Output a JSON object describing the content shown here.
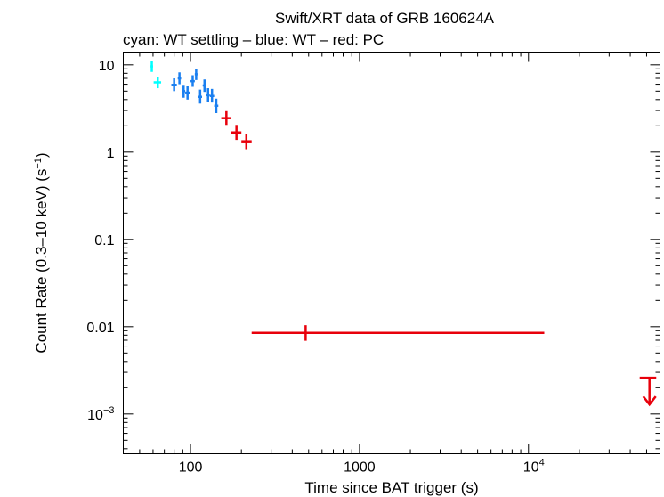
{
  "chart_data": {
    "type": "scatter",
    "title": "Swift/XRT data of GRB 160624A",
    "subtitle": "cyan: WT settling – blue: WT – red: PC",
    "xlabel": "Time since BAT trigger (s)",
    "ylabel": "Count Rate (0.3–10 keV) (s",
    "ylabel_sup": "−1",
    "ylabel_end": ")",
    "xscale": "log",
    "yscale": "log",
    "xlim": [
      40,
      60000
    ],
    "ylim": [
      0.00035,
      14
    ],
    "x_ticks": [
      {
        "value": 100,
        "label": "100"
      },
      {
        "value": 1000,
        "label": "1000"
      },
      {
        "value": 10000,
        "base": "10",
        "exp": "4"
      }
    ],
    "y_ticks": [
      {
        "value": 10,
        "label": "10"
      },
      {
        "value": 1,
        "label": "1"
      },
      {
        "value": 0.1,
        "label": "0.1"
      },
      {
        "value": 0.01,
        "label": "0.01"
      },
      {
        "value": 0.001,
        "base": "10",
        "exp": "−3"
      }
    ],
    "series": [
      {
        "color": "#00ffff",
        "points": [
          {
            "x": 59,
            "xlo": 58,
            "xhi": 60,
            "y": 9.6,
            "ylo": 8.3,
            "yhi": 11.0
          },
          {
            "x": 64,
            "xlo": 60.5,
            "xhi": 67,
            "y": 6.3,
            "ylo": 5.4,
            "yhi": 7.3
          }
        ]
      },
      {
        "color": "#1a7ff0",
        "points": [
          {
            "x": 80,
            "xlo": 77,
            "xhi": 83,
            "y": 5.9,
            "ylo": 5.0,
            "yhi": 7.0
          },
          {
            "x": 86,
            "xlo": 84,
            "xhi": 88,
            "y": 7.0,
            "ylo": 6.0,
            "yhi": 8.2
          },
          {
            "x": 91,
            "xlo": 89,
            "xhi": 93,
            "y": 5.0,
            "ylo": 4.2,
            "yhi": 5.9
          },
          {
            "x": 96,
            "xlo": 93,
            "xhi": 99,
            "y": 4.8,
            "ylo": 4.0,
            "yhi": 5.8
          },
          {
            "x": 103,
            "xlo": 100,
            "xhi": 106,
            "y": 6.5,
            "ylo": 5.6,
            "yhi": 7.6
          },
          {
            "x": 108,
            "xlo": 106,
            "xhi": 110,
            "y": 7.8,
            "ylo": 6.7,
            "yhi": 9.0
          },
          {
            "x": 114,
            "xlo": 111,
            "xhi": 117,
            "y": 4.3,
            "ylo": 3.6,
            "yhi": 5.2
          },
          {
            "x": 121,
            "xlo": 118,
            "xhi": 124,
            "y": 5.8,
            "ylo": 4.9,
            "yhi": 6.8
          },
          {
            "x": 127,
            "xlo": 124,
            "xhi": 130,
            "y": 4.5,
            "ylo": 3.8,
            "yhi": 5.4
          },
          {
            "x": 134,
            "xlo": 130,
            "xhi": 138,
            "y": 4.4,
            "ylo": 3.7,
            "yhi": 5.3
          },
          {
            "x": 142,
            "xlo": 138,
            "xhi": 146,
            "y": 3.4,
            "ylo": 2.8,
            "yhi": 4.1
          }
        ]
      },
      {
        "color": "#e8000b",
        "points": [
          {
            "x": 163,
            "xlo": 152,
            "xhi": 174,
            "y": 2.45,
            "ylo": 2.05,
            "yhi": 2.95
          },
          {
            "x": 187,
            "xlo": 174,
            "xhi": 200,
            "y": 1.68,
            "ylo": 1.38,
            "yhi": 2.05
          },
          {
            "x": 214,
            "xlo": 200,
            "xhi": 230,
            "y": 1.33,
            "ylo": 1.08,
            "yhi": 1.62
          },
          {
            "x": 480,
            "xlo": 230,
            "xhi": 12400,
            "y": 0.0085,
            "ylo": 0.0069,
            "yhi": 0.0104
          }
        ]
      }
    ],
    "upper_limits": [
      {
        "color": "#e8000b",
        "x": 52000,
        "xlo": 45500,
        "xhi": 57000,
        "y": 0.0026
      }
    ]
  }
}
